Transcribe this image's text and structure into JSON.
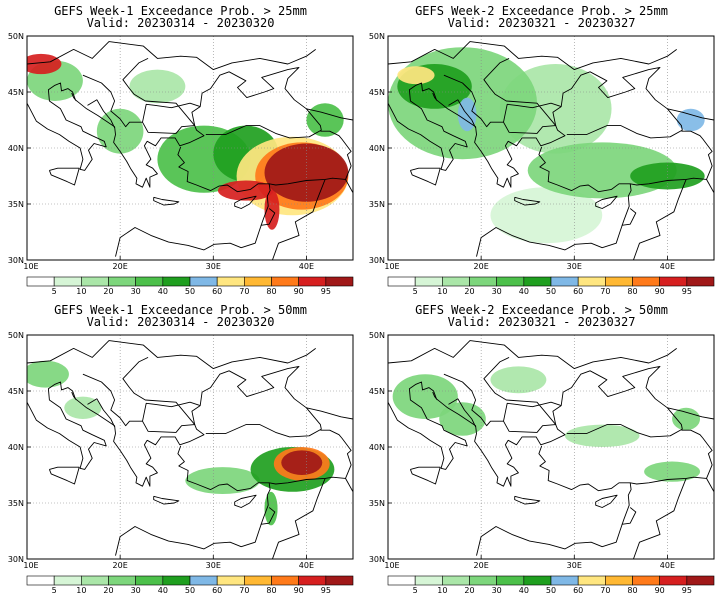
{
  "panels": [
    {
      "title": "GEFS Week-1 Exceedance Prob. > 25mm",
      "valid": "Valid: 20230314 - 20230320",
      "blobs": [
        {
          "lon": 11.5,
          "lat": 47.5,
          "rx": 2.2,
          "ry": 0.9,
          "level": 90
        },
        {
          "lon": 13.0,
          "lat": 46.0,
          "rx": 3.0,
          "ry": 1.8,
          "level": 20
        },
        {
          "lon": 20.0,
          "lat": 41.5,
          "rx": 2.5,
          "ry": 2.0,
          "level": 20
        },
        {
          "lon": 29.0,
          "lat": 39.0,
          "rx": 5.0,
          "ry": 3.0,
          "level": 30
        },
        {
          "lon": 33.5,
          "lat": 39.5,
          "rx": 3.5,
          "ry": 2.5,
          "level": 40
        },
        {
          "lon": 38.5,
          "lat": 37.5,
          "rx": 6.0,
          "ry": 3.5,
          "level": 60
        },
        {
          "lon": 39.5,
          "lat": 37.5,
          "rx": 5.0,
          "ry": 3.0,
          "level": 80
        },
        {
          "lon": 40.0,
          "lat": 37.8,
          "rx": 4.5,
          "ry": 2.6,
          "level": 95
        },
        {
          "lon": 33.5,
          "lat": 36.2,
          "rx": 3.0,
          "ry": 0.9,
          "level": 90
        },
        {
          "lon": 36.3,
          "lat": 34.5,
          "rx": 0.8,
          "ry": 1.8,
          "level": 90
        },
        {
          "lon": 42.0,
          "lat": 42.5,
          "rx": 2.0,
          "ry": 1.5,
          "level": 30
        },
        {
          "lon": 24.0,
          "lat": 45.5,
          "rx": 3.0,
          "ry": 1.5,
          "level": 10
        }
      ]
    },
    {
      "title": "GEFS Week-2 Exceedance Prob. > 25mm",
      "valid": "Valid: 20230321 - 20230327",
      "blobs": [
        {
          "lon": 18.0,
          "lat": 44.0,
          "rx": 8.0,
          "ry": 5.0,
          "level": 20
        },
        {
          "lon": 15.0,
          "lat": 45.5,
          "rx": 4.0,
          "ry": 2.0,
          "level": 40
        },
        {
          "lon": 13.0,
          "lat": 46.5,
          "rx": 2.0,
          "ry": 0.8,
          "level": 60
        },
        {
          "lon": 18.5,
          "lat": 43.0,
          "rx": 1.0,
          "ry": 1.5,
          "level": 50
        },
        {
          "lon": 28.0,
          "lat": 43.5,
          "rx": 6.0,
          "ry": 4.0,
          "level": 10
        },
        {
          "lon": 33.0,
          "lat": 38.0,
          "rx": 8.0,
          "ry": 2.5,
          "level": 20
        },
        {
          "lon": 40.0,
          "lat": 37.5,
          "rx": 4.0,
          "ry": 1.2,
          "level": 40
        },
        {
          "lon": 42.5,
          "lat": 42.5,
          "rx": 1.5,
          "ry": 1.0,
          "level": 50
        },
        {
          "lon": 27.0,
          "lat": 34.0,
          "rx": 6.0,
          "ry": 2.5,
          "level": 5
        }
      ]
    },
    {
      "title": "GEFS Week-1 Exceedance Prob. > 50mm",
      "valid": "Valid: 20230314 - 20230320",
      "blobs": [
        {
          "lon": 12.0,
          "lat": 46.5,
          "rx": 2.5,
          "ry": 1.2,
          "level": 20
        },
        {
          "lon": 16.0,
          "lat": 43.5,
          "rx": 2.0,
          "ry": 1.0,
          "level": 10
        },
        {
          "lon": 31.0,
          "lat": 37.0,
          "rx": 4.0,
          "ry": 1.2,
          "level": 20
        },
        {
          "lon": 38.5,
          "lat": 38.0,
          "rx": 4.5,
          "ry": 2.0,
          "level": 40
        },
        {
          "lon": 39.5,
          "lat": 38.5,
          "rx": 3.0,
          "ry": 1.5,
          "level": 80
        },
        {
          "lon": 39.5,
          "lat": 38.6,
          "rx": 2.2,
          "ry": 1.1,
          "level": 95
        },
        {
          "lon": 36.2,
          "lat": 34.5,
          "rx": 0.7,
          "ry": 1.5,
          "level": 30
        }
      ]
    },
    {
      "title": "GEFS Week-2 Exceedance Prob. > 50mm",
      "valid": "Valid: 20230321 - 20230327",
      "blobs": [
        {
          "lon": 14.0,
          "lat": 44.5,
          "rx": 3.5,
          "ry": 2.0,
          "level": 20
        },
        {
          "lon": 18.0,
          "lat": 42.5,
          "rx": 2.5,
          "ry": 1.5,
          "level": 20
        },
        {
          "lon": 24.0,
          "lat": 46.0,
          "rx": 3.0,
          "ry": 1.2,
          "level": 10
        },
        {
          "lon": 33.0,
          "lat": 41.0,
          "rx": 4.0,
          "ry": 1.0,
          "level": 10
        },
        {
          "lon": 40.5,
          "lat": 37.8,
          "rx": 3.0,
          "ry": 0.9,
          "level": 20
        },
        {
          "lon": 42.0,
          "lat": 42.5,
          "rx": 1.5,
          "ry": 1.0,
          "level": 20
        }
      ]
    }
  ],
  "map": {
    "lon_range": [
      10,
      45
    ],
    "lat_range": [
      30,
      50
    ],
    "x_ticks": [
      "10E",
      "20E",
      "30E",
      "40E"
    ],
    "y_ticks": [
      "30N",
      "35N",
      "40N",
      "45N",
      "50N"
    ]
  },
  "colorbar": {
    "levels": [
      "5",
      "10",
      "20",
      "30",
      "40",
      "50",
      "60",
      "70",
      "80",
      "90",
      "95"
    ],
    "colors": [
      "#ffffff",
      "#d6f5d6",
      "#aae6a8",
      "#7dd67c",
      "#4cc04a",
      "#1f9f1f",
      "#7fb8e6",
      "#ffe680",
      "#ffb833",
      "#ff7a1a",
      "#d61f1f",
      "#a01818"
    ],
    "level_colors": {
      "5": "#d6f5d6",
      "10": "#aae6a8",
      "20": "#7dd67c",
      "30": "#4cc04a",
      "40": "#1f9f1f",
      "50": "#7fb8e6",
      "60": "#ffe680",
      "70": "#ffb833",
      "80": "#ff7a1a",
      "90": "#d61f1f",
      "95": "#a01818"
    }
  }
}
